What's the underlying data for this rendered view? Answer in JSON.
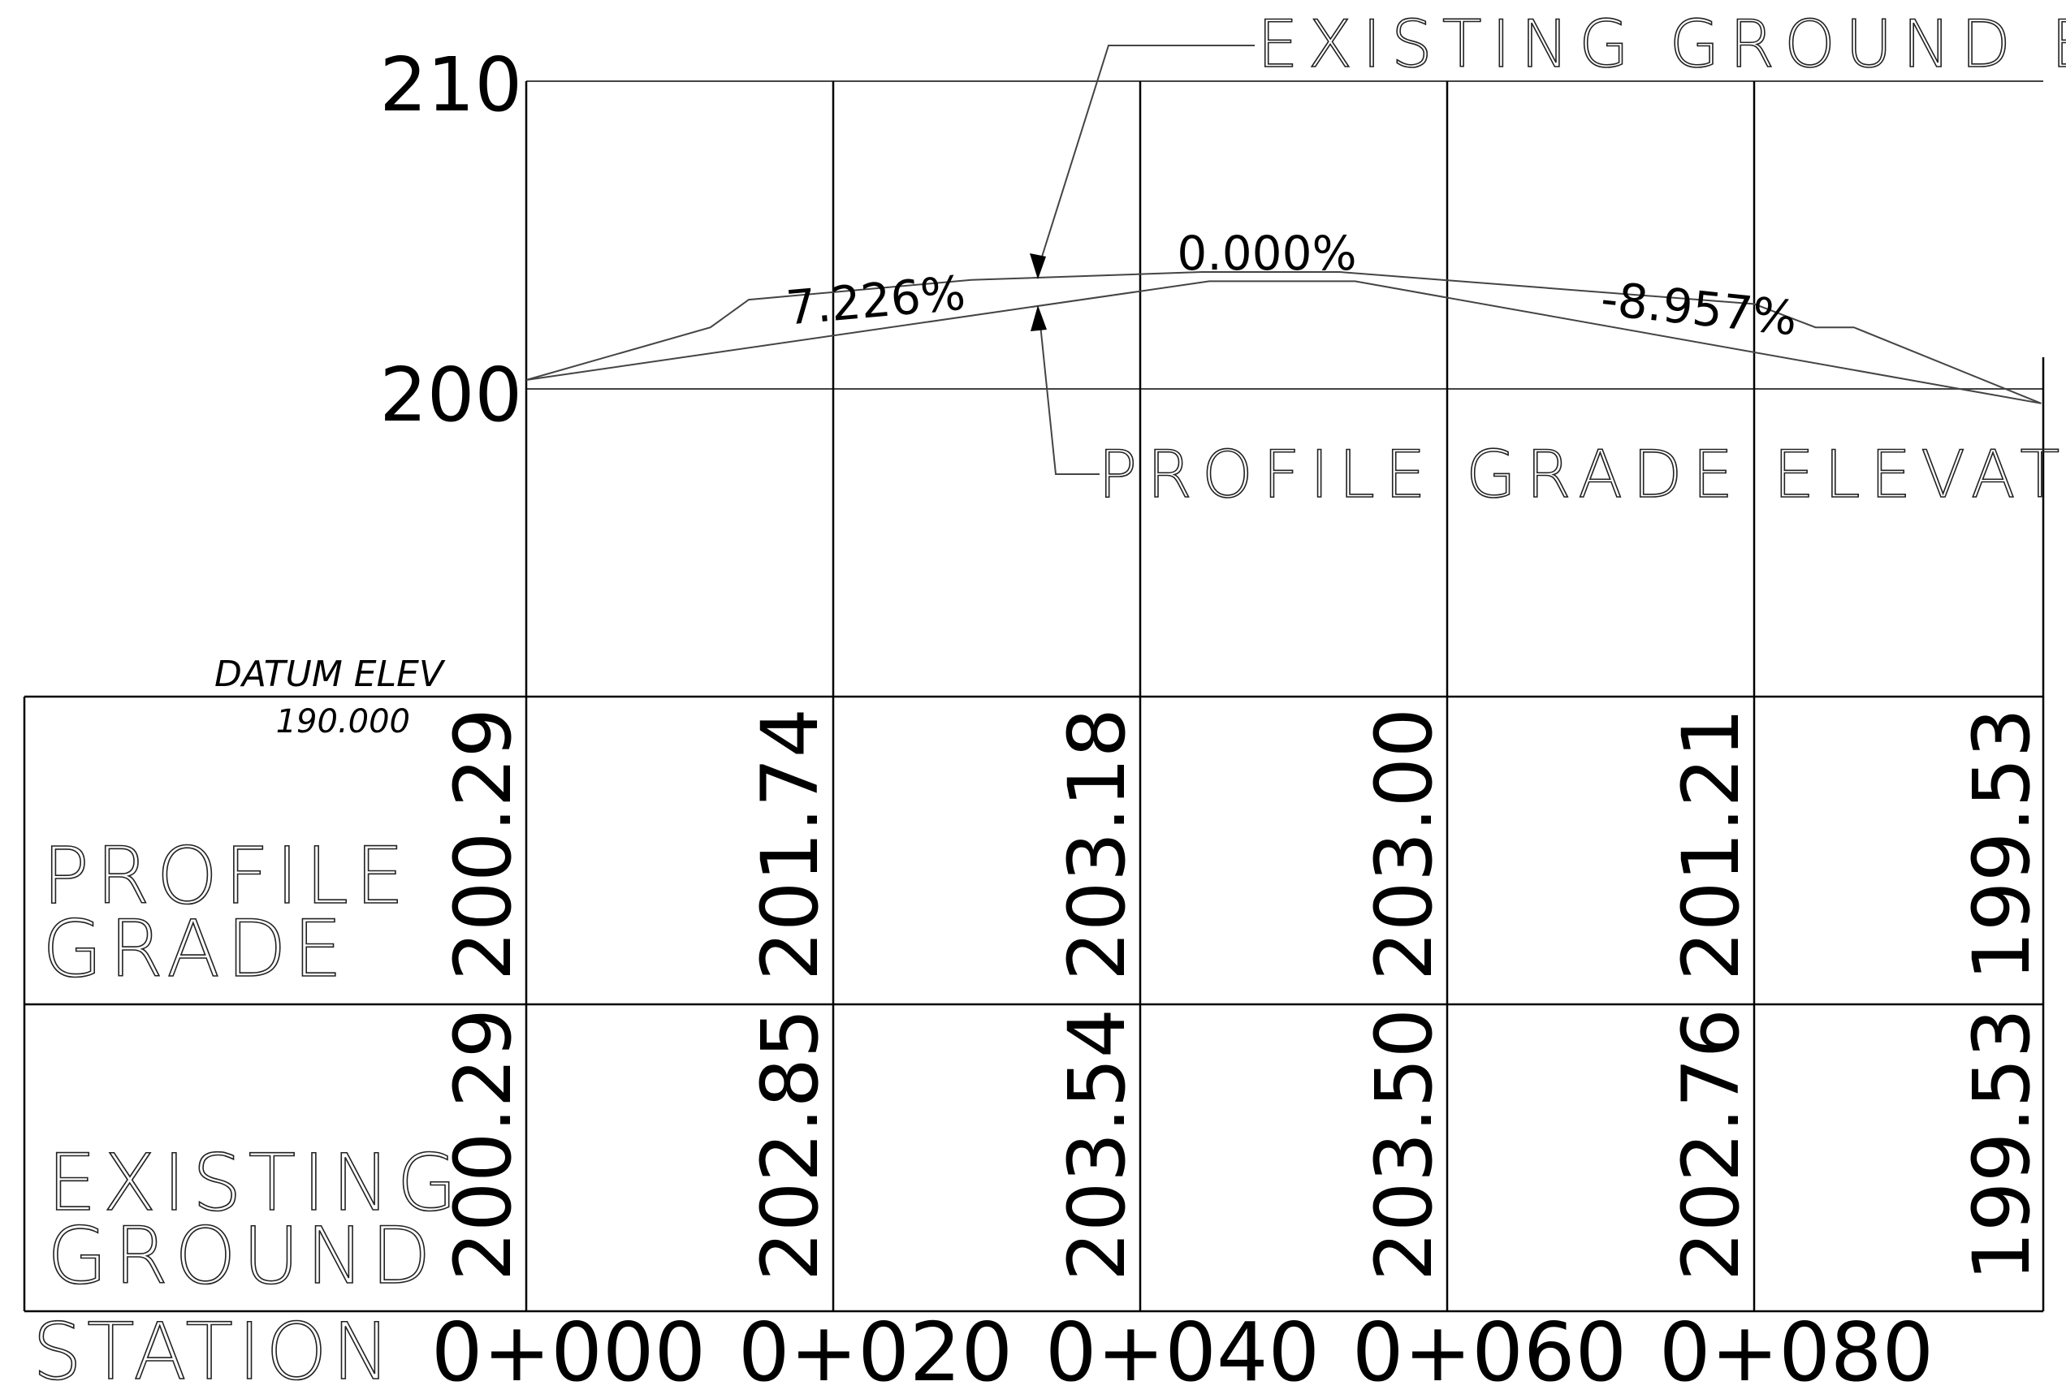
{
  "callouts": {
    "existing_ground": "EXISTING GROUND ELEVATION",
    "profile_grade": "PROFILE GRADE ELEVATION"
  },
  "y_axis": {
    "labels": [
      "210",
      "200"
    ]
  },
  "grades": [
    "7.226%",
    "0.000%",
    "-8.957%"
  ],
  "datum": {
    "label": "DATUM ELEV",
    "value": "190.000"
  },
  "rows": {
    "profile_grade": {
      "label_line1": "PROFILE",
      "label_line2": "GRADE",
      "values": [
        "200.29",
        "201.74",
        "203.18",
        "203.00",
        "201.21",
        "199.53"
      ]
    },
    "existing_ground": {
      "label_line1": "EXISTING",
      "label_line2": "GROUND",
      "values": [
        "200.29",
        "202.85",
        "203.54",
        "203.50",
        "202.76",
        "199.53"
      ]
    },
    "station": {
      "label": "STATION",
      "values": [
        "0+000",
        "0+020",
        "0+040",
        "0+060",
        "0+080"
      ]
    }
  },
  "chart_data": {
    "type": "line",
    "ylim": [
      190,
      210
    ],
    "x_ticks": [
      0,
      20,
      40,
      60,
      80
    ],
    "series": [
      {
        "name": "PROFILE GRADE ELEVATION",
        "points": [
          [
            0,
            200.29
          ],
          [
            44.5,
            203.5
          ],
          [
            54,
            203.5
          ],
          [
            98.7,
            199.53
          ]
        ]
      },
      {
        "name": "EXISTING GROUND ELEVATION",
        "points": [
          [
            0,
            200.29
          ],
          [
            12,
            202.0
          ],
          [
            14.5,
            202.9
          ],
          [
            29,
            203.54
          ],
          [
            44,
            203.8
          ],
          [
            53,
            203.8
          ],
          [
            80,
            202.76
          ],
          [
            84,
            202.0
          ],
          [
            86.5,
            202.0
          ],
          [
            98.7,
            199.53
          ]
        ]
      }
    ]
  }
}
